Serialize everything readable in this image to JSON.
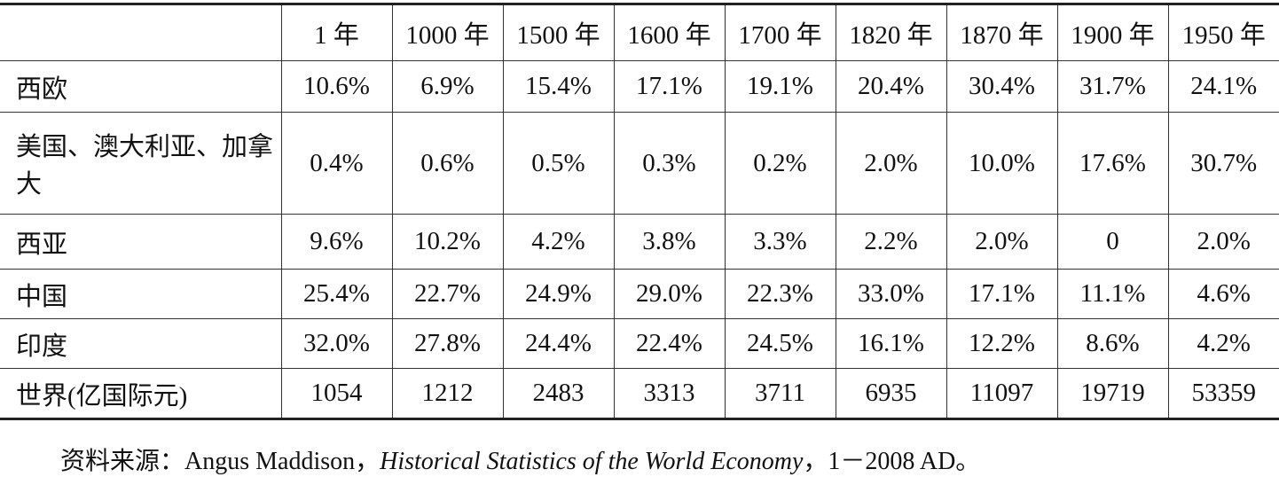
{
  "table": {
    "header": [
      "1 年",
      "1000 年",
      "1500 年",
      "1600 年",
      "1700 年",
      "1820 年",
      "1870 年",
      "1900 年",
      "1950 年"
    ],
    "rows": [
      [
        "西欧",
        "10.6%",
        "6.9%",
        "15.4%",
        "17.1%",
        "19.1%",
        "20.4%",
        "30.4%",
        "31.7%",
        "24.1%"
      ],
      [
        "美国、澳大利亚、加拿大",
        "0.4%",
        "0.6%",
        "0.5%",
        "0.3%",
        "0.2%",
        "2.0%",
        "10.0%",
        "17.6%",
        "30.7%"
      ],
      [
        "西亚",
        "9.6%",
        "10.2%",
        "4.2%",
        "3.8%",
        "3.3%",
        "2.2%",
        "2.0%",
        "0",
        "2.0%"
      ],
      [
        "中国",
        "25.4%",
        "22.7%",
        "24.9%",
        "29.0%",
        "22.3%",
        "33.0%",
        "17.1%",
        "11.1%",
        "4.6%"
      ],
      [
        "印度",
        "32.0%",
        "27.8%",
        "24.4%",
        "22.4%",
        "24.5%",
        "16.1%",
        "12.2%",
        "8.6%",
        "4.2%"
      ],
      [
        "世界(亿国际元)",
        "1054",
        "1212",
        "2483",
        "3313",
        "3711",
        "6935",
        "11097",
        "19719",
        "53359"
      ]
    ]
  },
  "note": {
    "prefix": "资料来源：Angus Maddison，",
    "title": "Historical Statistics of the World Economy",
    "suffix": "，1－2008 AD。"
  }
}
